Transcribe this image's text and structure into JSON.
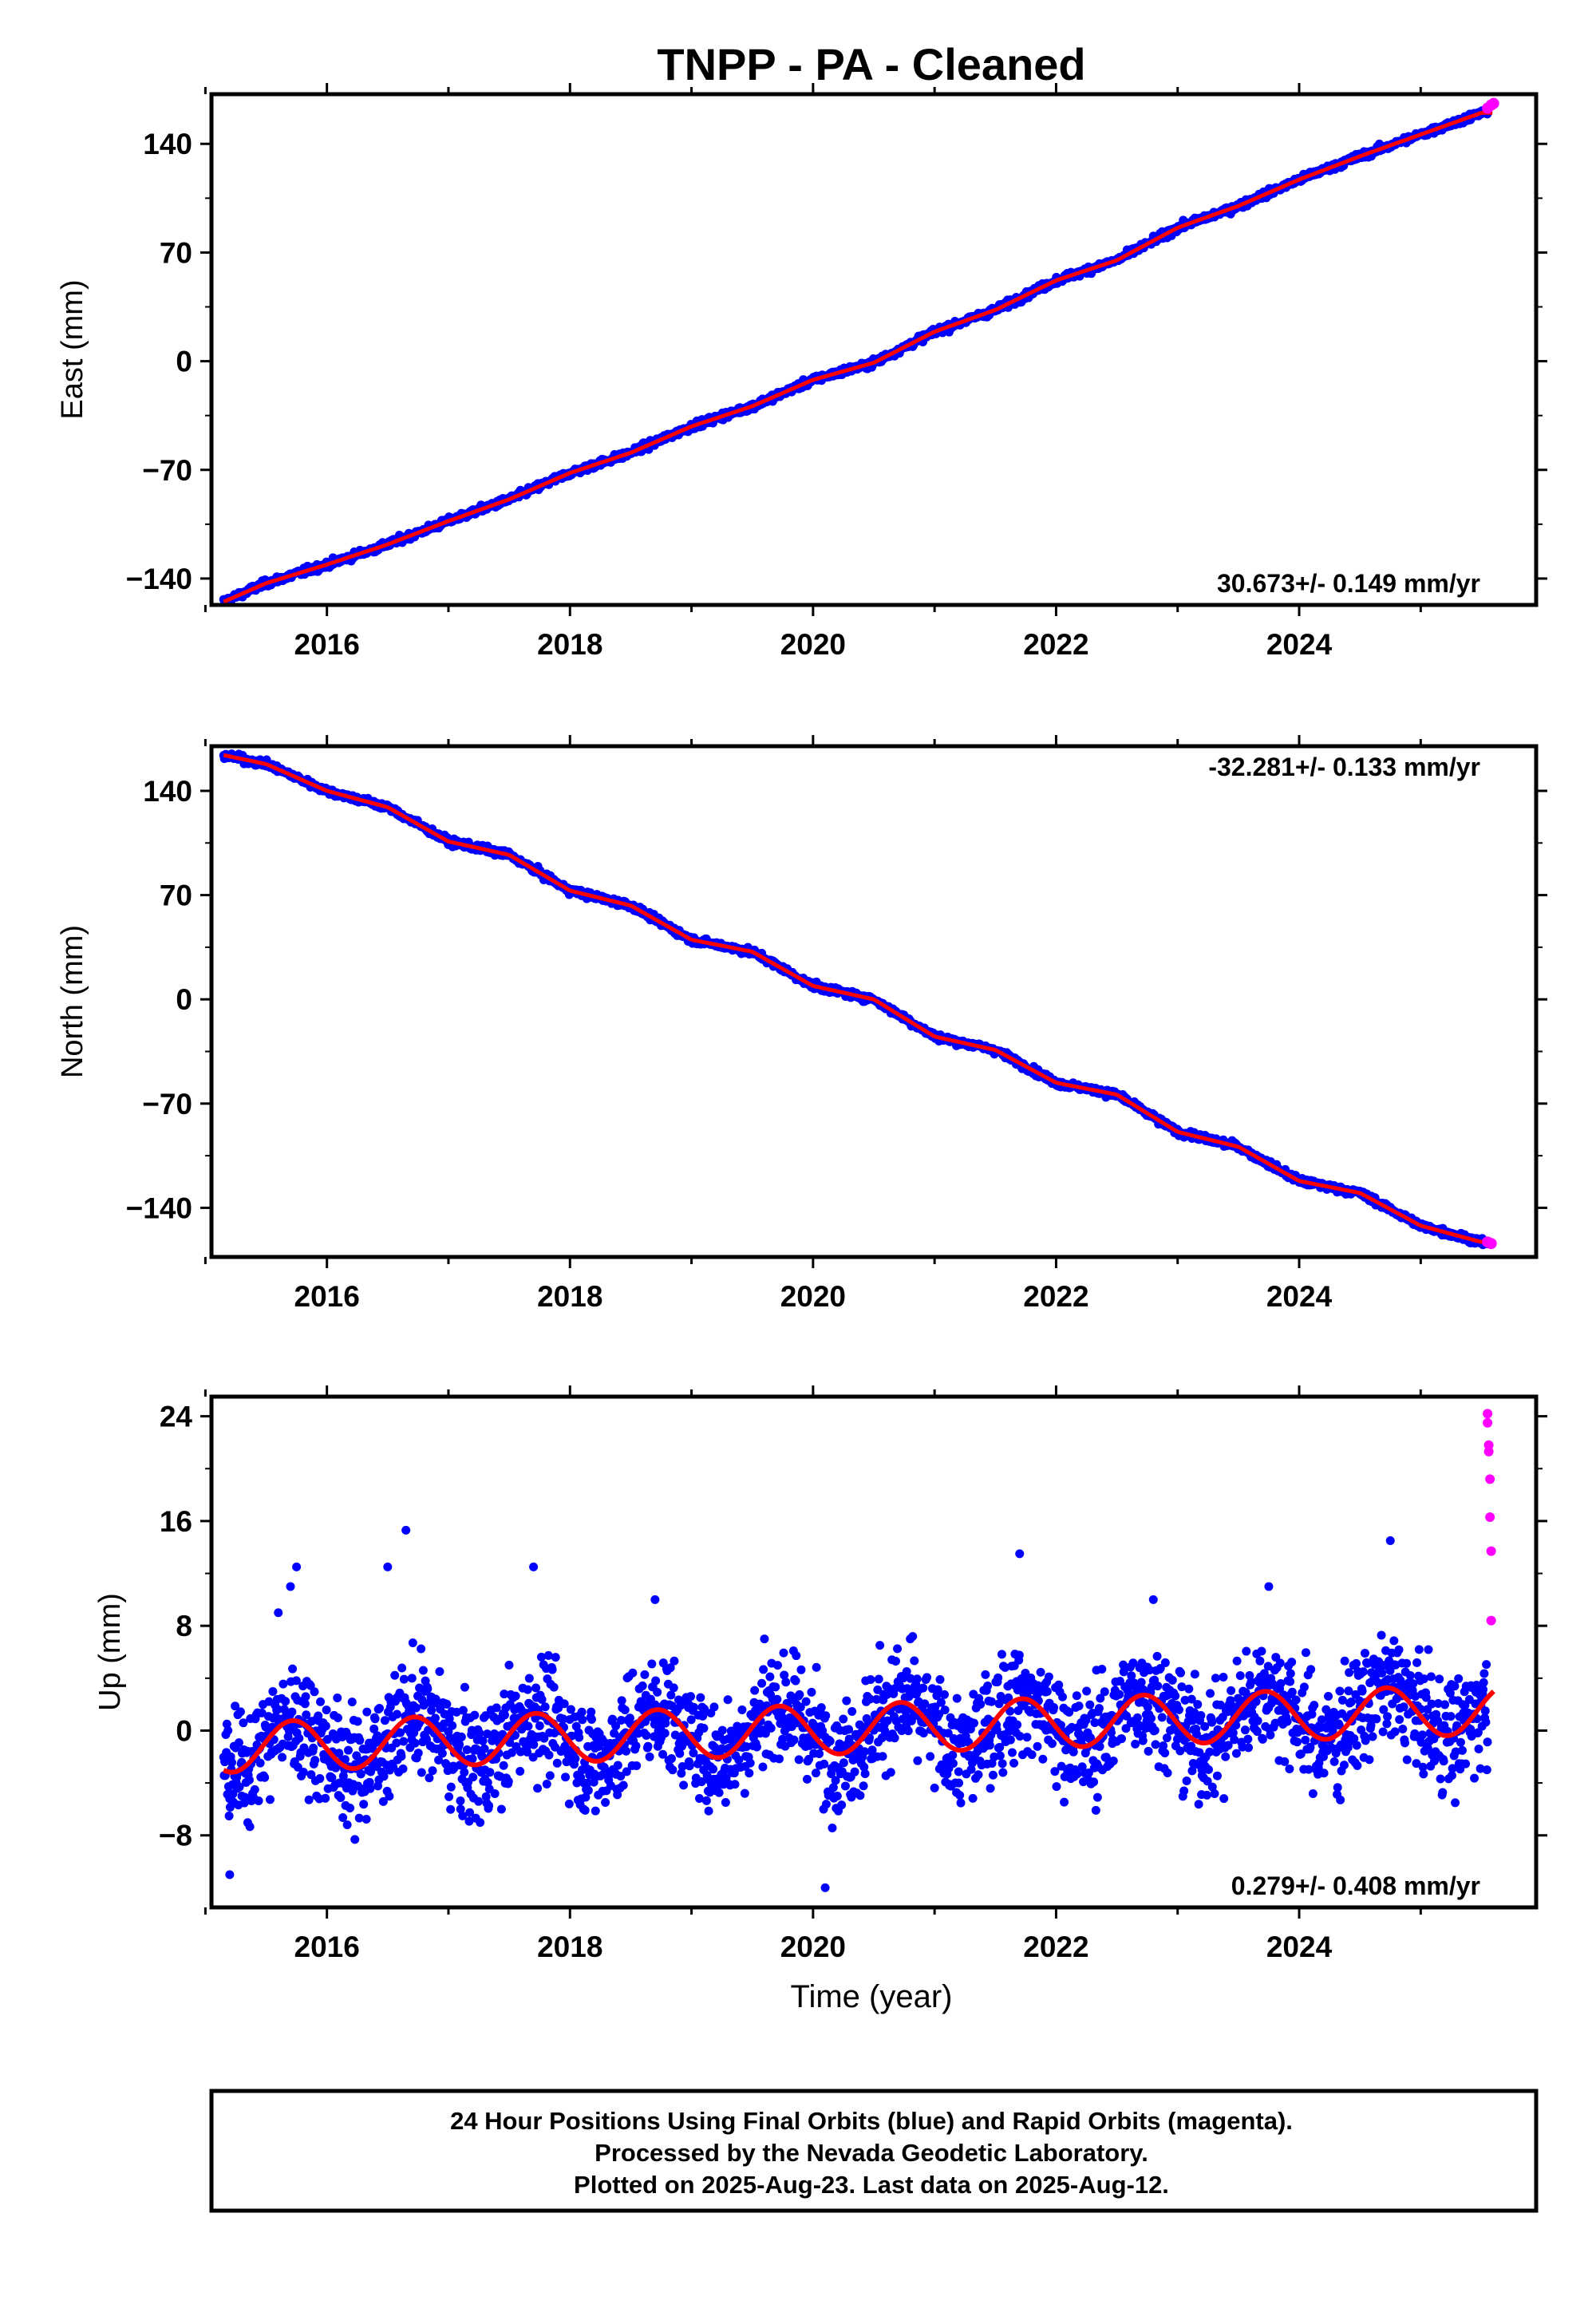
{
  "chart_data": [
    {
      "type": "scatter",
      "title": "TNPP  - PA - Cleaned",
      "ylabel": "East (mm)",
      "xlabel": "",
      "xlim": [
        2015.05,
        2025.95
      ],
      "ylim": [
        -157,
        172
      ],
      "x_ticks": [
        2016,
        2018,
        2020,
        2022,
        2024
      ],
      "y_ticks": [
        -140,
        -70,
        0,
        70,
        140
      ],
      "rate_label": "30.673+/- 0.149 mm/yr",
      "series": [
        {
          "name": "final",
          "color": "#0000ff",
          "x": [
            2015.15,
            2015.5,
            2016.0,
            2016.5,
            2017.0,
            2017.5,
            2018.0,
            2018.5,
            2019.0,
            2019.5,
            2020.0,
            2020.5,
            2021.0,
            2021.5,
            2022.0,
            2022.5,
            2023.0,
            2023.5,
            2024.0,
            2024.5,
            2025.0,
            2025.5
          ],
          "y": [
            -155,
            -143,
            -131,
            -118,
            -103,
            -89,
            -72,
            -59,
            -42,
            -29,
            -12,
            -1,
            19,
            33,
            52,
            65,
            86,
            100,
            117,
            132,
            146,
            160
          ]
        },
        {
          "name": "rapid",
          "color": "#ff00ff",
          "x": [
            2025.55,
            2025.58,
            2025.6
          ],
          "y": [
            163,
            165,
            166
          ]
        },
        {
          "name": "model",
          "color": "#ff0000",
          "x": [
            2015.15,
            2025.6
          ],
          "y": [
            -155,
            164
          ]
        }
      ]
    },
    {
      "type": "scatter",
      "title": "",
      "ylabel": "North (mm)",
      "xlabel": "",
      "xlim": [
        2015.05,
        2025.95
      ],
      "ylim": [
        -173,
        170
      ],
      "x_ticks": [
        2016,
        2018,
        2020,
        2022,
        2024
      ],
      "y_ticks": [
        -140,
        -70,
        0,
        70,
        140
      ],
      "rate_label": "-32.281+/- 0.133 mm/yr",
      "series": [
        {
          "name": "final",
          "color": "#0000ff",
          "x": [
            2015.15,
            2015.5,
            2016.0,
            2016.5,
            2017.0,
            2017.5,
            2018.0,
            2018.5,
            2019.0,
            2019.5,
            2020.0,
            2020.5,
            2021.0,
            2021.5,
            2022.0,
            2022.5,
            2023.0,
            2023.5,
            2024.0,
            2024.5,
            2025.0,
            2025.5
          ],
          "y": [
            164,
            158,
            140,
            129,
            106,
            97,
            73,
            63,
            40,
            32,
            9,
            0,
            -25,
            -34,
            -56,
            -64,
            -89,
            -99,
            -122,
            -130,
            -152,
            -163
          ]
        },
        {
          "name": "rapid",
          "color": "#ff00ff",
          "x": [
            2025.55,
            2025.58
          ],
          "y": [
            -163,
            -164
          ]
        },
        {
          "name": "model",
          "color": "#ff0000",
          "x": [
            2015.15,
            2025.6
          ],
          "y": [
            164,
            -164
          ]
        }
      ]
    },
    {
      "type": "scatter",
      "title": "",
      "ylabel": "Up (mm)",
      "xlabel": "Time (year)",
      "xlim": [
        2015.05,
        2025.95
      ],
      "ylim": [
        -13.5,
        25.5
      ],
      "x_ticks": [
        2016,
        2018,
        2020,
        2022,
        2024
      ],
      "y_ticks": [
        -8,
        0,
        8,
        16,
        24
      ],
      "rate_label": "0.279+/- 0.408 mm/yr",
      "annual_model": {
        "mean_at_start": -1.3,
        "trend_mm_per_yr": 0.279,
        "amplitude": 1.9,
        "phase_peak_yr_fraction": 0.72,
        "x_start": 2015.15,
        "x_end": 2025.6
      },
      "series": [
        {
          "name": "final",
          "color": "#0000ff",
          "x": [
            2015.2,
            2015.3,
            2015.6,
            2015.7,
            2015.75,
            2016.1,
            2016.5,
            2016.65,
            2016.7,
            2017.1,
            2017.3,
            2017.7,
            2018.1,
            2018.7,
            2019.1,
            2019.6,
            2020.1,
            2020.2,
            2020.8,
            2021.2,
            2021.7,
            2022.1,
            2022.8,
            2023.2,
            2023.75,
            2024.2,
            2024.75,
            2025.2,
            2025.5
          ],
          "y": [
            -11,
            -5,
            9,
            11,
            12.5,
            -4,
            12.5,
            15.3,
            4,
            -6,
            -3,
            12.5,
            -3,
            10,
            -3,
            7,
            -12,
            -5,
            7,
            -4,
            13.5,
            -1,
            10,
            -3,
            11,
            -2,
            14.5,
            0,
            3
          ]
        },
        {
          "name": "rapid",
          "color": "#ff00ff",
          "x": [
            2025.55,
            2025.55,
            2025.56,
            2025.56,
            2025.57,
            2025.57,
            2025.58,
            2025.58
          ],
          "y": [
            24.2,
            23.5,
            21.8,
            21.3,
            19.2,
            16.3,
            13.7,
            8.4
          ]
        }
      ]
    }
  ],
  "footer": {
    "line1": "24 Hour Positions Using Final Orbits (blue) and Rapid Orbits (magenta).",
    "line2": "Processed by the Nevada Geodetic Laboratory.",
    "line3": "Plotted on 2025-Aug-23. Last data on 2025-Aug-12."
  }
}
